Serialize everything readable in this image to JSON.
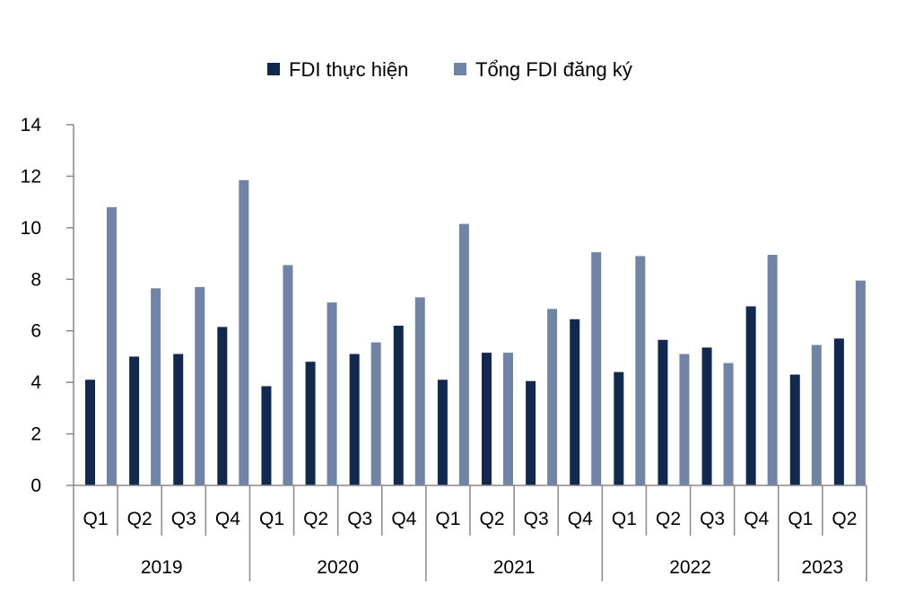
{
  "chart_data": {
    "type": "bar",
    "title": "",
    "xlabel": "",
    "ylabel": "",
    "ylim": [
      0,
      14
    ],
    "yticks": [
      "0",
      "2",
      "4",
      "6",
      "8",
      "10",
      "12",
      "14"
    ],
    "grid": false,
    "legend_position": "top-center",
    "categories": [
      "Q1",
      "Q2",
      "Q3",
      "Q4",
      "Q1",
      "Q2",
      "Q3",
      "Q4",
      "Q1",
      "Q2",
      "Q3",
      "Q4",
      "Q1",
      "Q2",
      "Q3",
      "Q4",
      "Q1",
      "Q2"
    ],
    "groups": [
      {
        "label": "2019",
        "count": 4
      },
      {
        "label": "2020",
        "count": 4
      },
      {
        "label": "2021",
        "count": 4
      },
      {
        "label": "2022",
        "count": 4
      },
      {
        "label": "2023",
        "count": 2
      }
    ],
    "series": [
      {
        "name": "FDI thực hiện",
        "color": "#13284f",
        "values": [
          4.1,
          5.0,
          5.1,
          6.15,
          3.85,
          4.8,
          5.1,
          6.2,
          4.1,
          5.15,
          4.05,
          6.45,
          4.4,
          5.65,
          5.35,
          6.95,
          4.3,
          5.7
        ]
      },
      {
        "name": "Tổng FDI đăng ký",
        "color": "#7184a6",
        "values": [
          10.8,
          7.65,
          7.7,
          11.85,
          8.55,
          7.1,
          5.55,
          7.3,
          10.15,
          5.15,
          6.85,
          9.05,
          8.9,
          5.1,
          4.75,
          8.95,
          5.45,
          7.95
        ]
      }
    ]
  }
}
